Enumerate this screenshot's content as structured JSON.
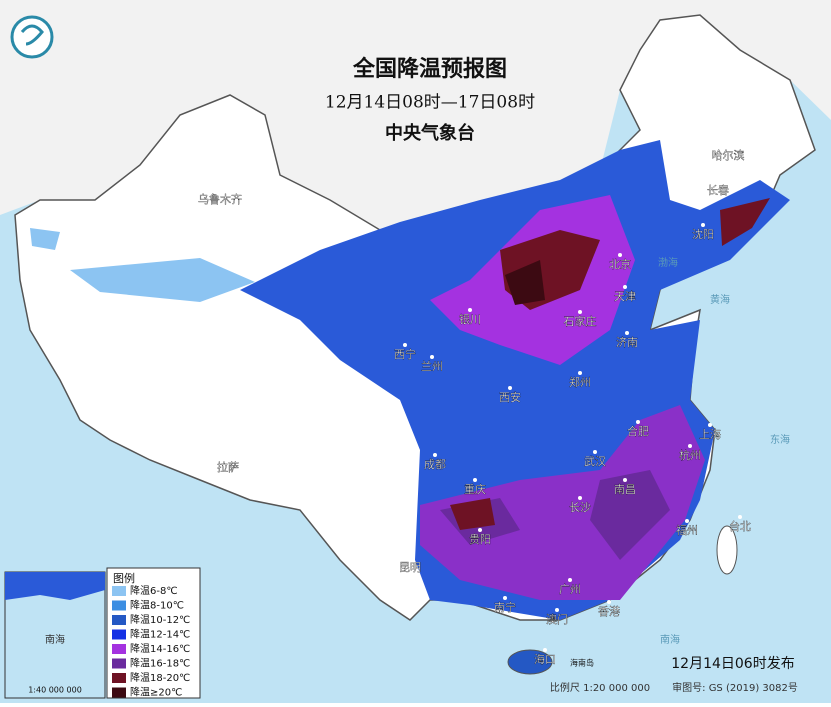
{
  "header": {
    "title": "全国降温预报图",
    "period": "12月14日08时—17日08时",
    "agency": "中央气象台"
  },
  "cities": [
    "乌鲁木齐",
    "哈尔滨",
    "长春",
    "沈阳",
    "北京",
    "天津",
    "石家庄",
    "济南",
    "郑州",
    "西安",
    "银川",
    "西宁",
    "兰州",
    "成都",
    "重庆",
    "贵阳",
    "昆明",
    "拉萨",
    "武汉",
    "长沙",
    "南昌",
    "合肥",
    "上海",
    "杭州",
    "福州",
    "台北",
    "南宁",
    "广州",
    "香港",
    "澳门",
    "海口"
  ],
  "seas": [
    "渤海",
    "黄海",
    "东海",
    "南海"
  ],
  "islands": [
    "海南岛"
  ],
  "legend": {
    "title": "图例",
    "items": [
      {
        "label": "降温6-8℃",
        "color": "#8cc4f2"
      },
      {
        "label": "降温8-10℃",
        "color": "#3c8ee2"
      },
      {
        "label": "降温10-12℃",
        "color": "#2458c4"
      },
      {
        "label": "降温12-14℃",
        "color": "#1430e4"
      },
      {
        "label": "降温14-16℃",
        "color": "#a432e0"
      },
      {
        "label": "降温16-18℃",
        "color": "#6a2a9e"
      },
      {
        "label": "降温18-20℃",
        "color": "#6e1224"
      },
      {
        "label": "降温≥20℃",
        "color": "#3c0a12"
      }
    ]
  },
  "inset": {
    "sea": "南海",
    "scale": "1:40 000 000"
  },
  "footer": {
    "issued": "12月14日06时发布",
    "scale": "比例尺 1:20 000 000",
    "approval": "审图号: GS (2019) 3082号"
  }
}
